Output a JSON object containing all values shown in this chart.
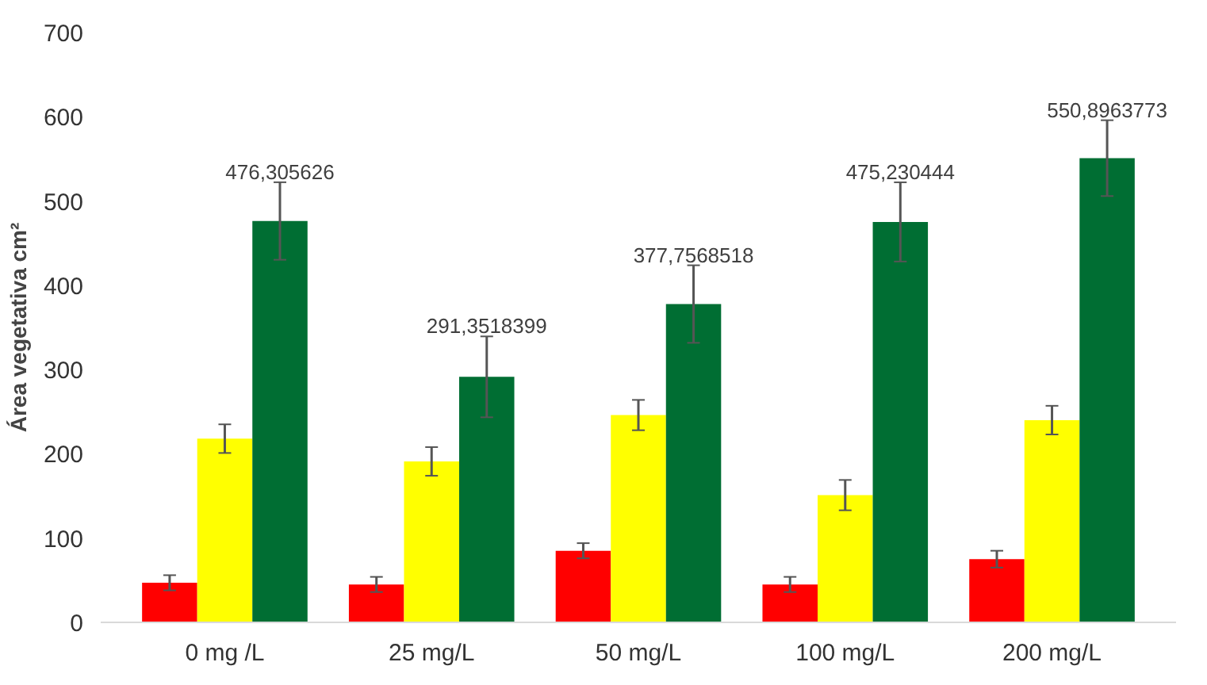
{
  "chart_data": {
    "type": "bar",
    "ylabel": "Área vegetativa cm²",
    "categories": [
      "0 mg /L",
      "25 mg/L",
      "50 mg/L",
      "100 mg/L",
      "200 mg/L"
    ],
    "ylim": [
      0,
      700
    ],
    "yticks": [
      0,
      100,
      200,
      300,
      400,
      500,
      600,
      700
    ],
    "grid": false,
    "series": [
      {
        "color": "#ff0000",
        "values": [
          47,
          45,
          85,
          45,
          75
        ],
        "errors": [
          9,
          9,
          9,
          9,
          10
        ]
      },
      {
        "color": "#ffff00",
        "values": [
          218,
          191,
          246,
          151,
          240
        ],
        "errors": [
          17,
          17,
          18,
          18,
          17
        ]
      },
      {
        "color": "#006e33",
        "values": [
          476.305626,
          291.3518399,
          377.7568518,
          475.230444,
          550.8963773
        ],
        "errors": [
          46,
          48,
          46,
          47,
          45
        ],
        "value_labels": [
          "476,305626",
          "291,3518399",
          "377,7568518",
          "475,230444",
          "550,8963773"
        ]
      }
    ]
  }
}
